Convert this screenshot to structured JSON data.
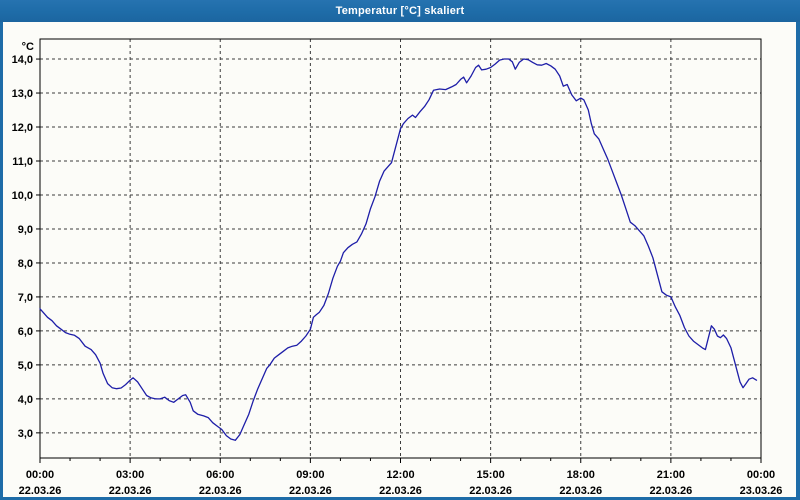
{
  "window": {
    "title": "Temperatur [°C] skaliert"
  },
  "colors": {
    "titlebar": "#1e6ca8",
    "frame": "#1e6ca8",
    "title_text": "#ffffff",
    "content_bg": "#fcfcf8",
    "axis": "#000000",
    "grid": "#3c3c3c",
    "label": "#000000",
    "line": "#1e1ea8"
  },
  "chart_data": {
    "type": "line",
    "title": "Temperatur [°C] skaliert",
    "y_unit_label": "°C",
    "xlabel": "",
    "ylabel": "°C",
    "grid": "dashed",
    "legend": "none",
    "xlim_hours": [
      0,
      24
    ],
    "ylim": [
      2.26,
      14.59
    ],
    "x_minor_step_hours": 1,
    "x_major_ticks": [
      {
        "hour": 0,
        "time": "00:00",
        "date": "22.03.26"
      },
      {
        "hour": 3,
        "time": "03:00",
        "date": "22.03.26"
      },
      {
        "hour": 6,
        "time": "06:00",
        "date": "22.03.26"
      },
      {
        "hour": 9,
        "time": "09:00",
        "date": "22.03.26"
      },
      {
        "hour": 12,
        "time": "12:00",
        "date": "22.03.26"
      },
      {
        "hour": 15,
        "time": "15:00",
        "date": "22.03.26"
      },
      {
        "hour": 18,
        "time": "18:00",
        "date": "22.03.26"
      },
      {
        "hour": 21,
        "time": "21:00",
        "date": "22.03.26"
      },
      {
        "hour": 24,
        "time": "00:00",
        "date": "23.03.26"
      }
    ],
    "y_ticks": [
      {
        "value": 3,
        "label": "3,0"
      },
      {
        "value": 4,
        "label": "4,0"
      },
      {
        "value": 5,
        "label": "5,0"
      },
      {
        "value": 6,
        "label": "6,0"
      },
      {
        "value": 7,
        "label": "7,0"
      },
      {
        "value": 8,
        "label": "8,0"
      },
      {
        "value": 9,
        "label": "9,0"
      },
      {
        "value": 10,
        "label": "10,0"
      },
      {
        "value": 11,
        "label": "11,0"
      },
      {
        "value": 12,
        "label": "12,0"
      },
      {
        "value": 13,
        "label": "13,0"
      },
      {
        "value": 14,
        "label": "14,0"
      }
    ],
    "series": [
      {
        "name": "Temperatur",
        "color": "#1e1ea8",
        "points": [
          [
            0.0,
            6.65
          ],
          [
            0.1,
            6.55
          ],
          [
            0.25,
            6.4
          ],
          [
            0.4,
            6.3
          ],
          [
            0.55,
            6.15
          ],
          [
            0.7,
            6.05
          ],
          [
            0.85,
            5.95
          ],
          [
            1.0,
            5.9
          ],
          [
            1.15,
            5.87
          ],
          [
            1.3,
            5.78
          ],
          [
            1.5,
            5.55
          ],
          [
            1.7,
            5.45
          ],
          [
            1.85,
            5.3
          ],
          [
            2.0,
            5.05
          ],
          [
            2.1,
            4.75
          ],
          [
            2.25,
            4.45
          ],
          [
            2.4,
            4.33
          ],
          [
            2.55,
            4.3
          ],
          [
            2.7,
            4.32
          ],
          [
            2.85,
            4.42
          ],
          [
            3.0,
            4.55
          ],
          [
            3.1,
            4.62
          ],
          [
            3.25,
            4.5
          ],
          [
            3.4,
            4.3
          ],
          [
            3.55,
            4.1
          ],
          [
            3.7,
            4.03
          ],
          [
            3.85,
            4.0
          ],
          [
            4.0,
            4.0
          ],
          [
            4.15,
            4.05
          ],
          [
            4.3,
            3.95
          ],
          [
            4.45,
            3.9
          ],
          [
            4.6,
            4.0
          ],
          [
            4.75,
            4.1
          ],
          [
            4.85,
            4.12
          ],
          [
            5.0,
            3.9
          ],
          [
            5.1,
            3.65
          ],
          [
            5.25,
            3.55
          ],
          [
            5.45,
            3.5
          ],
          [
            5.6,
            3.45
          ],
          [
            5.75,
            3.3
          ],
          [
            5.9,
            3.2
          ],
          [
            6.05,
            3.1
          ],
          [
            6.2,
            2.92
          ],
          [
            6.35,
            2.82
          ],
          [
            6.5,
            2.78
          ],
          [
            6.65,
            2.95
          ],
          [
            6.8,
            3.25
          ],
          [
            6.95,
            3.55
          ],
          [
            7.1,
            3.95
          ],
          [
            7.25,
            4.3
          ],
          [
            7.4,
            4.6
          ],
          [
            7.55,
            4.9
          ],
          [
            7.65,
            5.0
          ],
          [
            7.8,
            5.2
          ],
          [
            7.95,
            5.3
          ],
          [
            8.1,
            5.4
          ],
          [
            8.25,
            5.5
          ],
          [
            8.4,
            5.55
          ],
          [
            8.55,
            5.58
          ],
          [
            8.7,
            5.7
          ],
          [
            8.85,
            5.85
          ],
          [
            9.0,
            6.05
          ],
          [
            9.1,
            6.4
          ],
          [
            9.2,
            6.48
          ],
          [
            9.3,
            6.55
          ],
          [
            9.45,
            6.75
          ],
          [
            9.6,
            7.1
          ],
          [
            9.75,
            7.55
          ],
          [
            9.9,
            7.9
          ],
          [
            10.0,
            8.05
          ],
          [
            10.1,
            8.3
          ],
          [
            10.25,
            8.45
          ],
          [
            10.4,
            8.55
          ],
          [
            10.55,
            8.62
          ],
          [
            10.7,
            8.85
          ],
          [
            10.85,
            9.15
          ],
          [
            11.0,
            9.6
          ],
          [
            11.15,
            9.95
          ],
          [
            11.3,
            10.4
          ],
          [
            11.45,
            10.7
          ],
          [
            11.6,
            10.85
          ],
          [
            11.7,
            10.95
          ],
          [
            11.85,
            11.45
          ],
          [
            12.0,
            11.95
          ],
          [
            12.1,
            12.1
          ],
          [
            12.25,
            12.25
          ],
          [
            12.4,
            12.35
          ],
          [
            12.5,
            12.28
          ],
          [
            12.65,
            12.45
          ],
          [
            12.8,
            12.6
          ],
          [
            12.95,
            12.8
          ],
          [
            13.1,
            13.08
          ],
          [
            13.3,
            13.12
          ],
          [
            13.5,
            13.1
          ],
          [
            13.7,
            13.18
          ],
          [
            13.85,
            13.25
          ],
          [
            14.0,
            13.4
          ],
          [
            14.1,
            13.47
          ],
          [
            14.2,
            13.3
          ],
          [
            14.35,
            13.5
          ],
          [
            14.5,
            13.75
          ],
          [
            14.6,
            13.82
          ],
          [
            14.7,
            13.68
          ],
          [
            14.85,
            13.7
          ],
          [
            15.0,
            13.75
          ],
          [
            15.15,
            13.85
          ],
          [
            15.3,
            13.97
          ],
          [
            15.45,
            14.0
          ],
          [
            15.6,
            14.0
          ],
          [
            15.72,
            13.92
          ],
          [
            15.82,
            13.7
          ],
          [
            15.95,
            13.9
          ],
          [
            16.1,
            14.0
          ],
          [
            16.25,
            13.98
          ],
          [
            16.4,
            13.9
          ],
          [
            16.55,
            13.83
          ],
          [
            16.7,
            13.82
          ],
          [
            16.85,
            13.87
          ],
          [
            17.0,
            13.8
          ],
          [
            17.15,
            13.7
          ],
          [
            17.3,
            13.5
          ],
          [
            17.42,
            13.2
          ],
          [
            17.55,
            13.25
          ],
          [
            17.7,
            12.95
          ],
          [
            17.85,
            12.77
          ],
          [
            18.0,
            12.85
          ],
          [
            18.1,
            12.8
          ],
          [
            18.25,
            12.5
          ],
          [
            18.35,
            12.1
          ],
          [
            18.45,
            11.8
          ],
          [
            18.6,
            11.65
          ],
          [
            18.75,
            11.35
          ],
          [
            18.9,
            11.05
          ],
          [
            19.05,
            10.7
          ],
          [
            19.2,
            10.35
          ],
          [
            19.35,
            10.0
          ],
          [
            19.5,
            9.6
          ],
          [
            19.65,
            9.2
          ],
          [
            19.8,
            9.1
          ],
          [
            19.95,
            8.95
          ],
          [
            20.1,
            8.8
          ],
          [
            20.25,
            8.5
          ],
          [
            20.4,
            8.15
          ],
          [
            20.55,
            7.65
          ],
          [
            20.7,
            7.15
          ],
          [
            20.85,
            7.05
          ],
          [
            21.0,
            7.0
          ],
          [
            21.15,
            6.7
          ],
          [
            21.3,
            6.45
          ],
          [
            21.45,
            6.1
          ],
          [
            21.6,
            5.85
          ],
          [
            21.75,
            5.7
          ],
          [
            21.9,
            5.6
          ],
          [
            22.05,
            5.5
          ],
          [
            22.15,
            5.45
          ],
          [
            22.25,
            5.8
          ],
          [
            22.35,
            6.15
          ],
          [
            22.45,
            6.05
          ],
          [
            22.55,
            5.85
          ],
          [
            22.65,
            5.8
          ],
          [
            22.75,
            5.88
          ],
          [
            22.85,
            5.78
          ],
          [
            23.0,
            5.5
          ],
          [
            23.15,
            5.0
          ],
          [
            23.3,
            4.5
          ],
          [
            23.4,
            4.33
          ],
          [
            23.5,
            4.45
          ],
          [
            23.6,
            4.58
          ],
          [
            23.72,
            4.62
          ],
          [
            23.85,
            4.55
          ]
        ]
      }
    ]
  }
}
